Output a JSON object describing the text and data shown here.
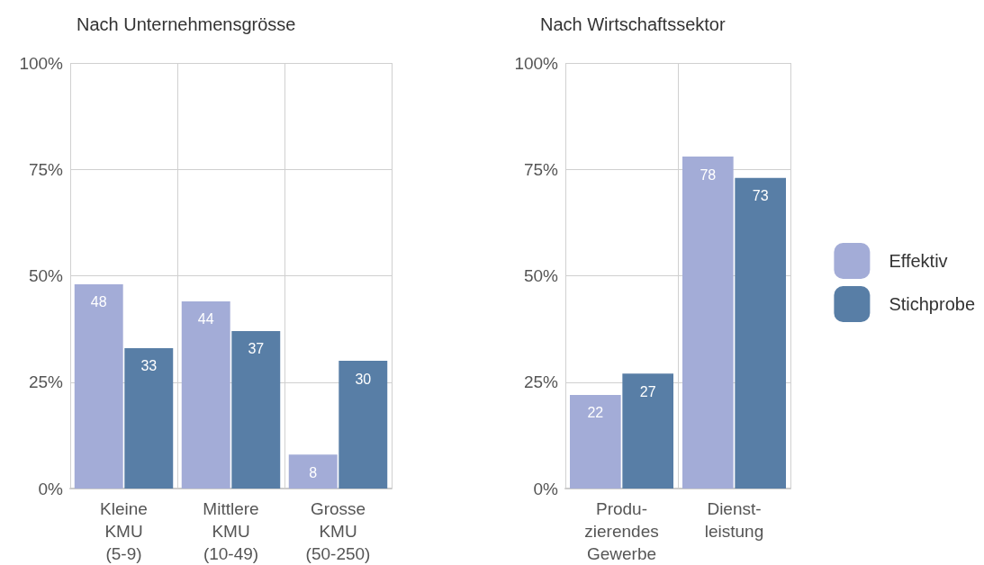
{
  "chart_data": [
    {
      "type": "bar",
      "title": "Nach Unternehmensgrösse",
      "categories": [
        "Kleine\nKMU\n(5-9)",
        "Mittlere\nKMU\n(10-49)",
        "Grosse\nKMU\n(50-250)"
      ],
      "series": [
        {
          "color": "#a3acd7",
          "values": [
            48,
            44,
            8
          ]
        },
        {
          "color": "#587ea6",
          "values": [
            33,
            37,
            30
          ]
        }
      ],
      "ylim": [
        0,
        100
      ],
      "yticks": [
        {
          "value": 0,
          "label": "0%"
        },
        {
          "value": 25,
          "label": "25%"
        },
        {
          "value": 50,
          "label": "50%"
        },
        {
          "value": 75,
          "label": "75%"
        },
        {
          "value": 100,
          "label": "100%"
        }
      ],
      "grid": true,
      "data_labels": true,
      "legend": false
    },
    {
      "type": "bar",
      "title": "Nach Wirtschaftssektor",
      "categories": [
        "Produ-\nzierendes\nGewerbe",
        "Dienst-\nleistung"
      ],
      "series": [
        {
          "name": "Effektiv",
          "color": "#a3acd7",
          "values": [
            22,
            78
          ]
        },
        {
          "name": "Stichprobe",
          "color": "#587ea6",
          "values": [
            27,
            73
          ]
        }
      ],
      "ylim": [
        0,
        100
      ],
      "yticks": [
        {
          "value": 0,
          "label": "0%"
        },
        {
          "value": 25,
          "label": "25%"
        },
        {
          "value": 50,
          "label": "50%"
        },
        {
          "value": 75,
          "label": "75%"
        },
        {
          "value": 100,
          "label": "100%"
        }
      ],
      "grid": true,
      "data_labels": true,
      "legend": "right"
    }
  ]
}
